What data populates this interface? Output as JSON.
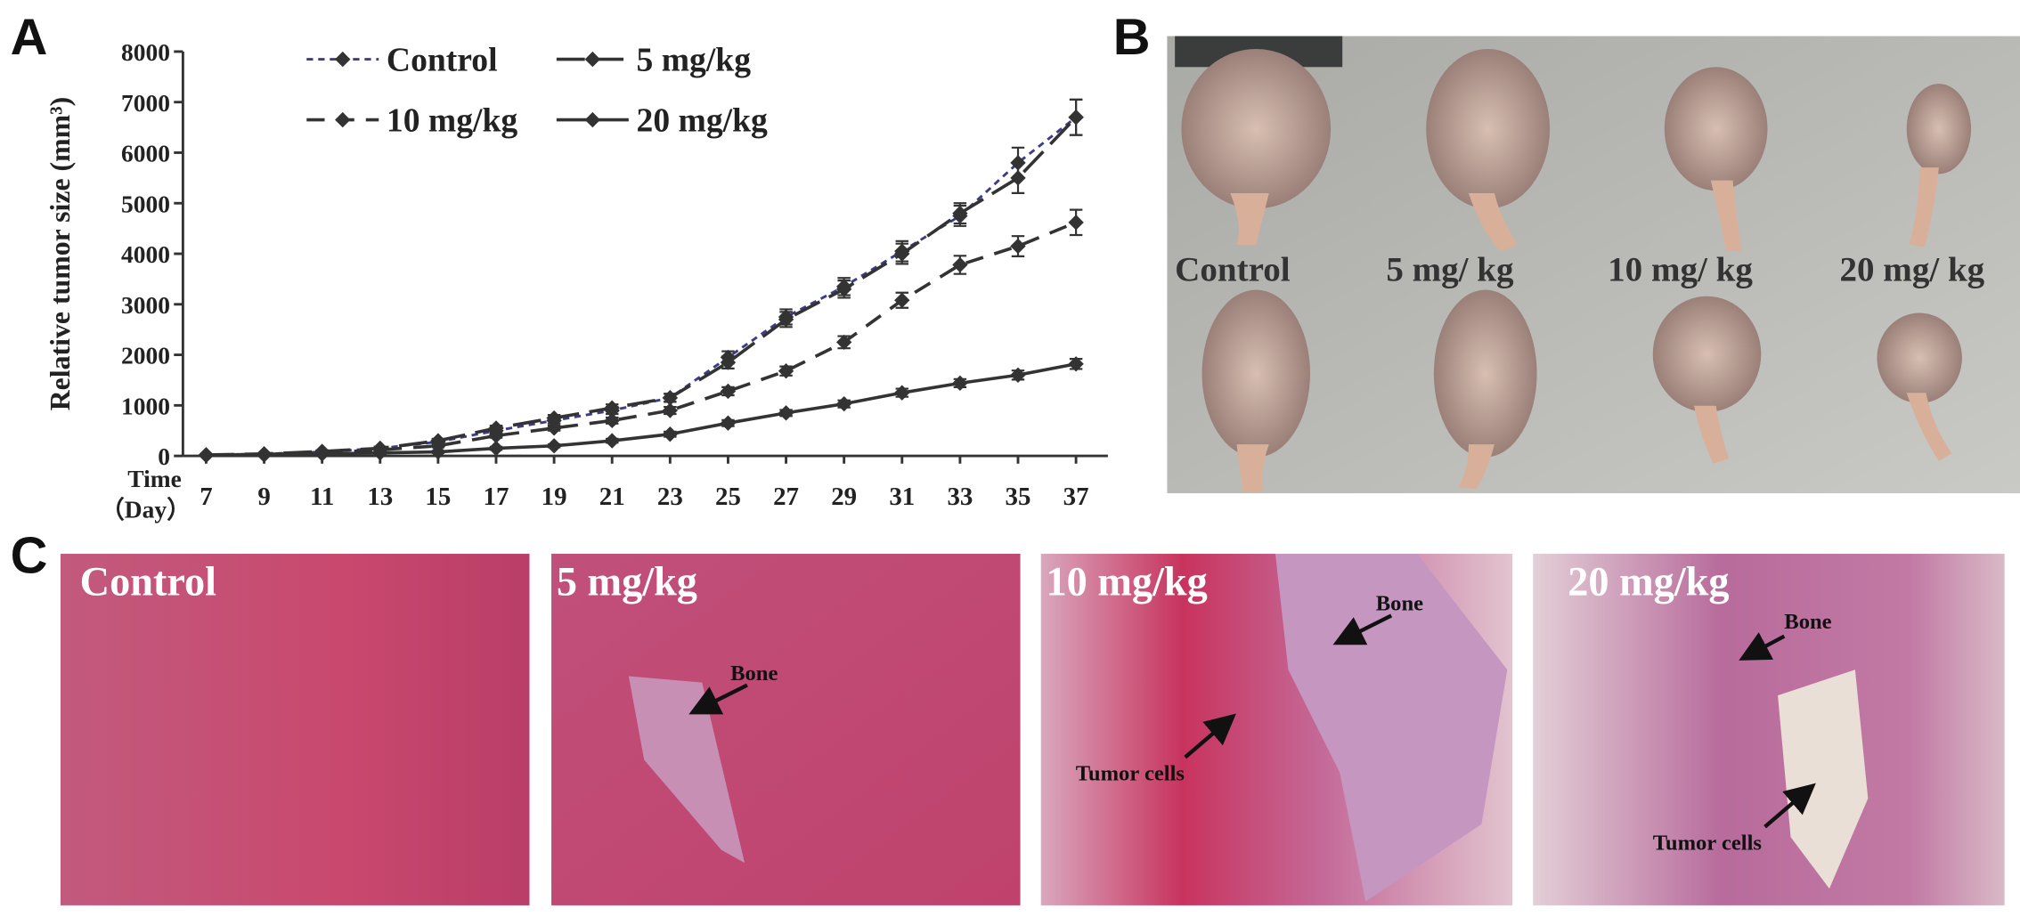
{
  "chart_data": {
    "type": "line",
    "y_label": "Relative tumor size (mm³)",
    "x_label": [
      "Time",
      "（Day）"
    ],
    "x": [
      7,
      9,
      11,
      13,
      15,
      17,
      19,
      21,
      23,
      25,
      27,
      29,
      31,
      33,
      35,
      37
    ],
    "xlim": [
      6.2,
      38.1
    ],
    "xticks": [
      7,
      9,
      11,
      13,
      15,
      17,
      19,
      21,
      23,
      25,
      27,
      29,
      31,
      33,
      35,
      37
    ],
    "ylim": [
      0,
      8000
    ],
    "yticks": [
      0,
      1000,
      2000,
      3000,
      4000,
      5000,
      6000,
      7000,
      8000
    ],
    "legend": "upper left",
    "series": [
      {
        "name": "Control",
        "color": "#3c3c88",
        "linestyle": "dotted",
        "values": [
          20,
          40,
          80,
          150,
          280,
          500,
          700,
          900,
          1150,
          1950,
          2750,
          3350,
          4050,
          4750,
          5800,
          6700
        ],
        "errors": [
          10,
          10,
          20,
          30,
          40,
          50,
          60,
          70,
          80,
          120,
          150,
          170,
          200,
          200,
          300,
          350
        ]
      },
      {
        "name": "5 mg/kg",
        "color": "#333333",
        "linestyle": "long-dash",
        "values": [
          20,
          40,
          90,
          150,
          300,
          550,
          750,
          950,
          1150,
          1850,
          2700,
          3300,
          4000,
          4800,
          5500,
          6700
        ],
        "errors": [
          10,
          10,
          20,
          30,
          40,
          50,
          60,
          70,
          80,
          120,
          150,
          170,
          200,
          200,
          300,
          350
        ]
      },
      {
        "name": "10 mg/kg",
        "color": "#333333",
        "linestyle": "dashed",
        "values": [
          20,
          30,
          60,
          120,
          200,
          400,
          550,
          700,
          900,
          1280,
          1680,
          2250,
          3080,
          3780,
          4150,
          4620
        ],
        "errors": [
          10,
          10,
          20,
          20,
          30,
          40,
          50,
          60,
          70,
          80,
          90,
          120,
          150,
          180,
          200,
          250
        ]
      },
      {
        "name": "20 mg/kg",
        "color": "#333333",
        "linestyle": "solid",
        "values": [
          10,
          20,
          40,
          60,
          80,
          150,
          200,
          300,
          430,
          650,
          850,
          1030,
          1250,
          1440,
          1600,
          1820
        ],
        "errors": [
          5,
          10,
          10,
          20,
          20,
          30,
          30,
          40,
          50,
          60,
          60,
          70,
          80,
          80,
          90,
          100
        ]
      }
    ]
  },
  "panel_labels": [
    "A",
    "B",
    "C"
  ],
  "photo": {
    "labels": [
      "Control",
      "5 mg/ kg",
      "10 mg/ kg",
      "20 mg/ kg"
    ]
  },
  "histology": [
    {
      "label": "Control"
    },
    {
      "label": "5 mg/kg",
      "annotations": [
        "Bone"
      ]
    },
    {
      "label": "10 mg/kg",
      "annotations": [
        "Bone",
        "Tumor  cells"
      ]
    },
    {
      "label": "20 mg/kg",
      "annotations": [
        "Bone",
        "Tumor  cells"
      ]
    }
  ]
}
